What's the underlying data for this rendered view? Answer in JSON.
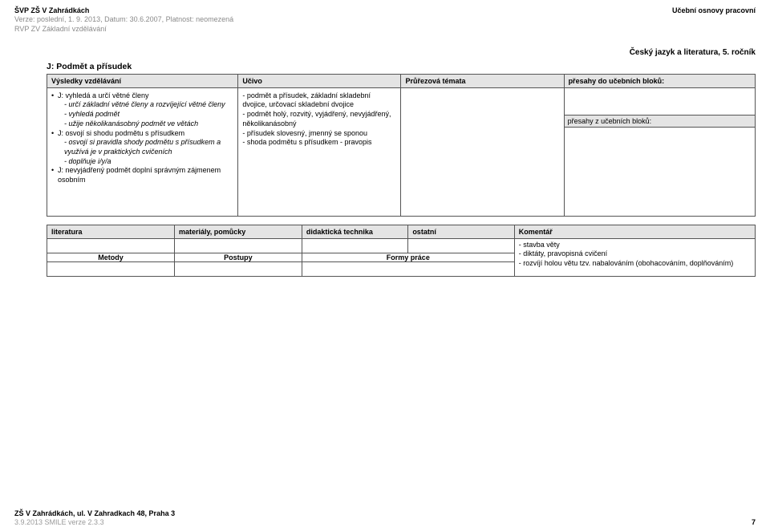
{
  "header": {
    "left_line1": "ŠVP ZŠ V Zahrádkách",
    "left_line2": "Verze: poslední, 1. 9. 2013, Datum: 30.6.2007, Platnost: neomezená",
    "left_line3": "RVP ZV Základní vzdělávání",
    "right": "Učební osnovy pracovní"
  },
  "subject": "Český jazyk a literatura, 5. ročník",
  "topic": "J: Podmět a přísudek",
  "main_table": {
    "headers": [
      "Výsledky vzdělávání",
      "Učivo",
      "Průřezová témata",
      "přesahy do učebních bloků:"
    ],
    "outcomes": [
      {
        "main": "J: vyhledá a určí větné členy",
        "subs": [
          "- určí základní větné členy a rozvíjející větné členy",
          "- vyhledá podmět",
          "- užije několikanásobný podmět ve větách"
        ]
      },
      {
        "main": "J: osvojí si shodu podmětu s přísudkem",
        "subs": [
          "- osvojí si pravidla shody podmětu s přísudkem a využívá je v praktických cvičeních",
          "- doplňuje i/y/a"
        ]
      },
      {
        "main": "J: nevyjádřený podmět doplní správným zájmenem osobním",
        "subs": []
      }
    ],
    "ucivo": "- podmět a přísudek, základní skladební dvojice, určovací skladební dvojice\n- podmět holý, rozvitý, vyjádřený, nevyjádřený, několikanásobný\n- přísudek slovesný, jmenný se sponou\n- shoda podmětu s přísudkem - pravopis",
    "presahy_sub": "přesahy z učebních bloků:"
  },
  "lower_table": {
    "headers": [
      "literatura",
      "materiály, pomůcky",
      "didaktická technika",
      "ostatní",
      "Komentář"
    ],
    "row2": [
      "Metody",
      "Postupy",
      "Formy práce"
    ],
    "komentar": "- stavba věty\n- diktáty, pravopisná cvičení\n- rozvíjí holou větu tzv. nabalováním (obohacováním, doplňováním)"
  },
  "footer": {
    "line1": "ZŠ V Zahrádkách, ul. V Zahradkach 48, Praha 3",
    "line2": "3.9.2013 SMILE verze 2.3.3",
    "page": "7"
  }
}
